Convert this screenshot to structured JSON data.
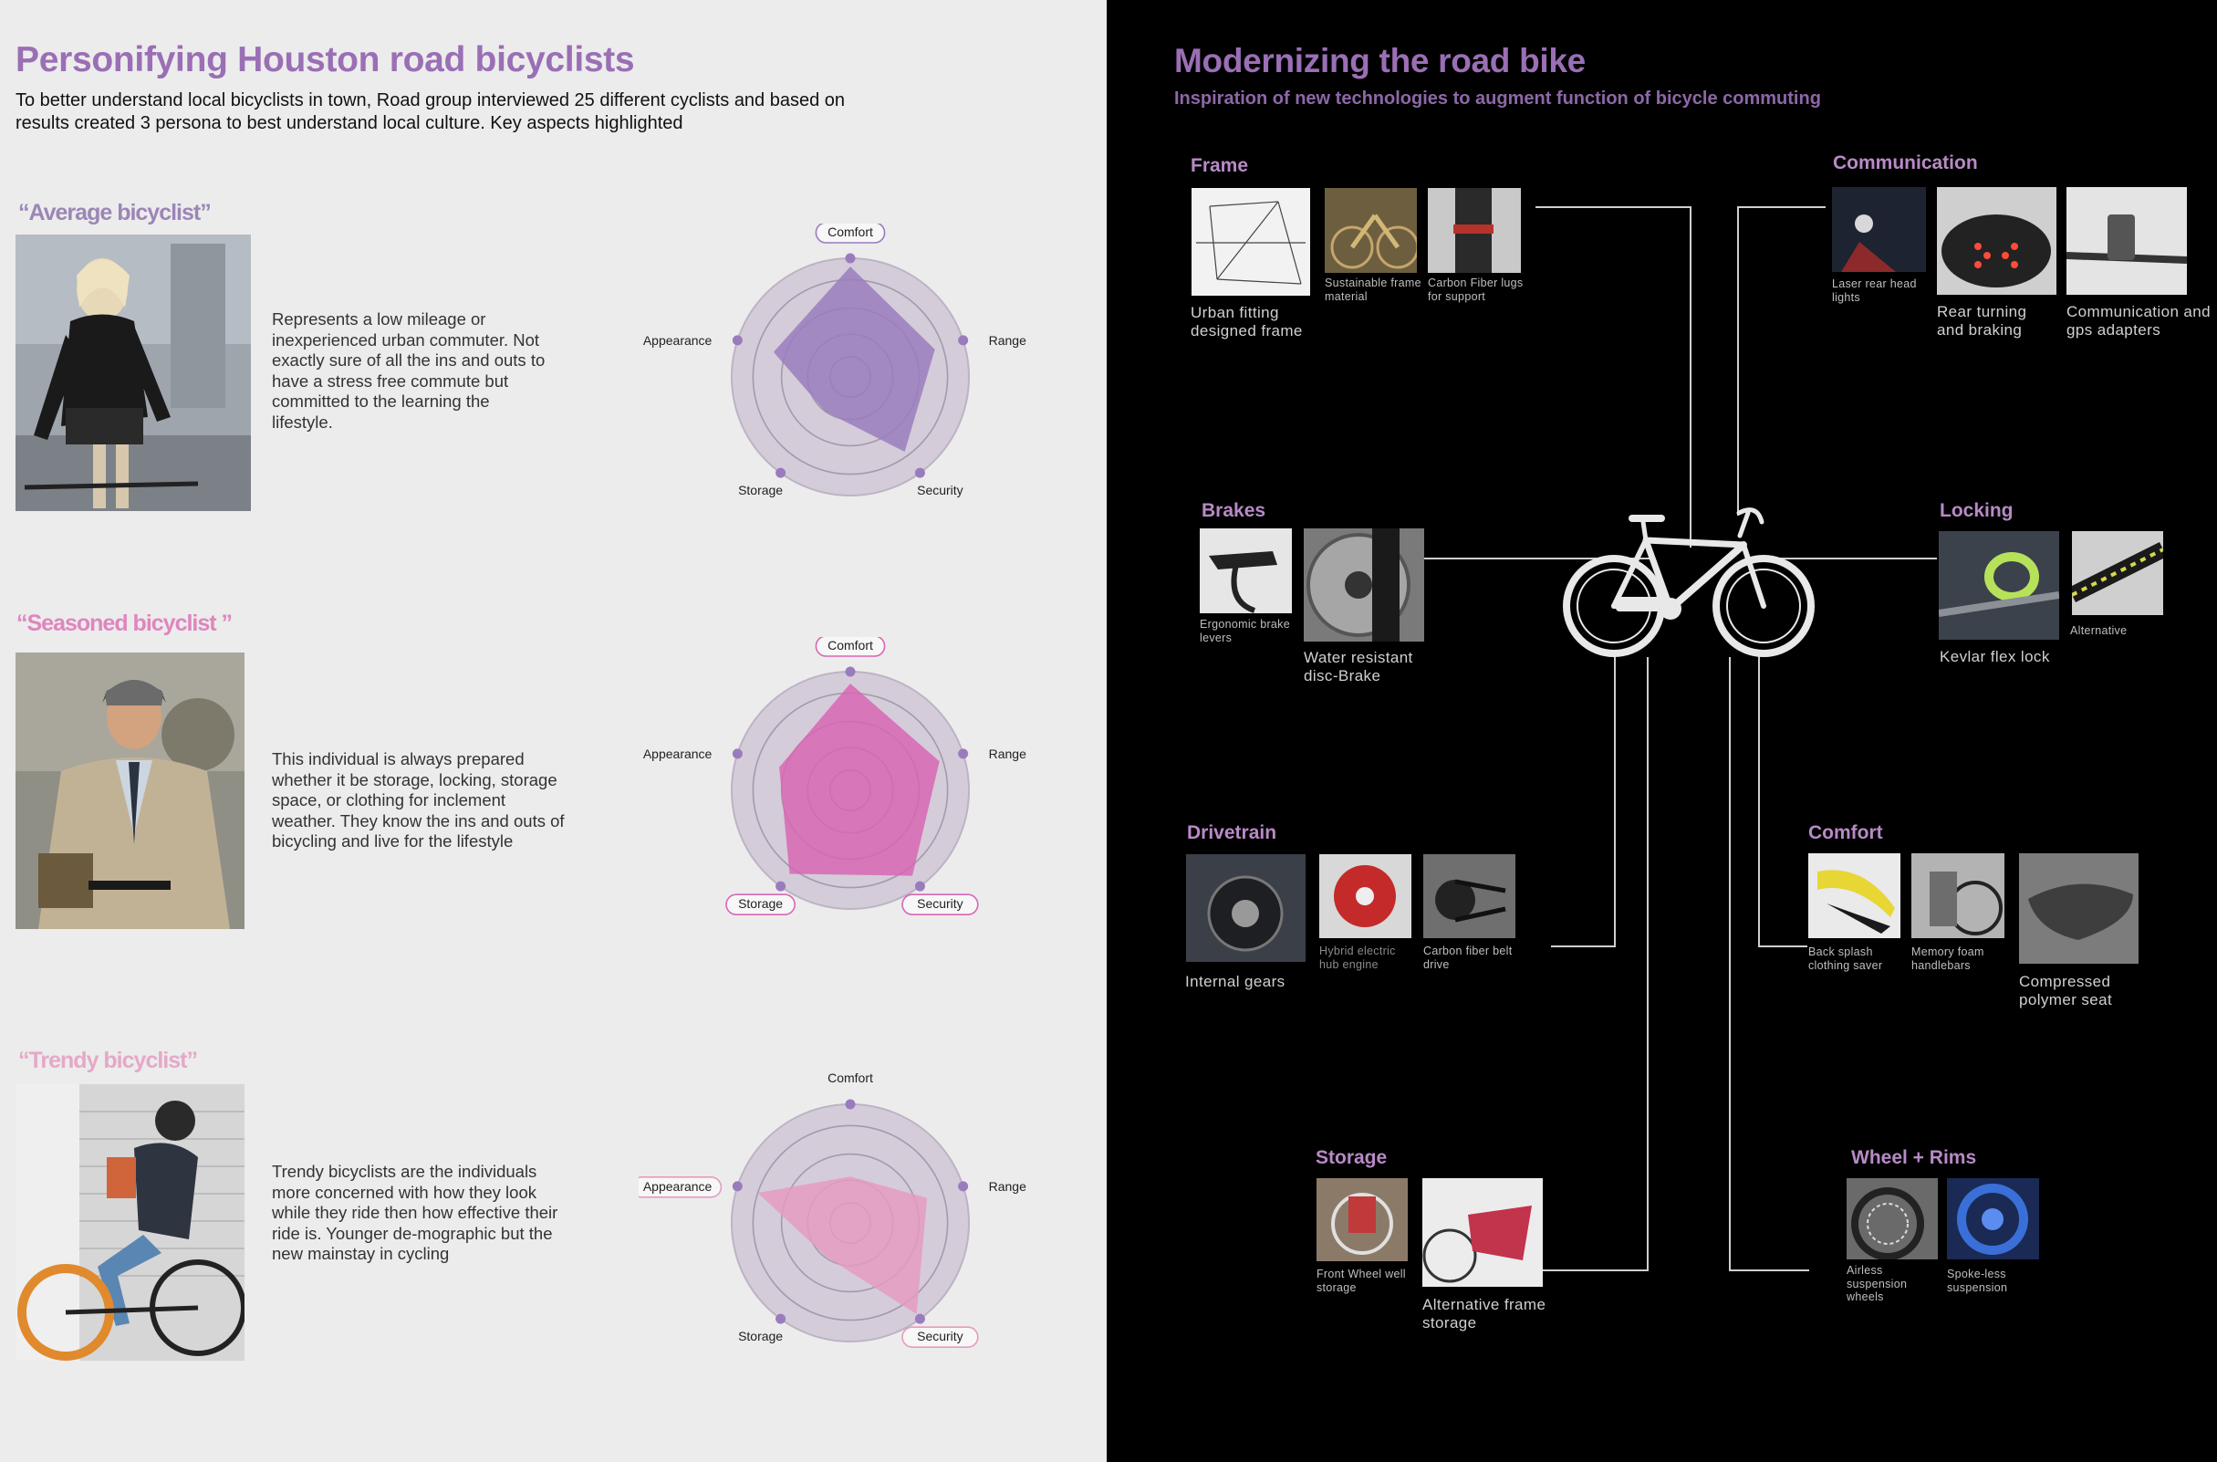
{
  "left": {
    "title": "Personifying Houston road bicyclists",
    "intro": "To better understand local bicyclists in town, Road group interviewed 25 different cyclists and based on results created 3 persona to best understand local culture. Key aspects highlighted",
    "personas": [
      {
        "name": "“Average bicyclist”",
        "description": "Represents a low mileage or inexperienced urban commuter. Not exactly sure of all the ins and outs to have a stress free commute but committed to the learning the lifestyle.",
        "color": "#9a7cbd",
        "highlighted": [
          "Comfort"
        ]
      },
      {
        "name": "“Seasoned bicyclist ”",
        "description": "This individual is always prepared whether it be storage, locking, storage space, or clothing for inclement weather. They know the ins and outs of bicycling and live for the lifestyle",
        "color": "#d866b4",
        "highlighted": [
          "Comfort",
          "Storage",
          "Security"
        ]
      },
      {
        "name": "“Trendy bicyclist”",
        "description": "Trendy bicyclists are the individuals more concerned with how they look while they ride then how effective their ride is. Younger de-mographic but the new mainstay in cycling",
        "color": "#e59bbf",
        "highlighted": [
          "Appearance",
          "Security"
        ]
      }
    ],
    "radar_labels": {
      "comfort": "Comfort",
      "range": "Range",
      "security": "Security",
      "storage": "Storage",
      "appearance": "Appearance"
    }
  },
  "chart_data": [
    {
      "type": "radar",
      "title": "“Average bicyclist”",
      "axes": [
        "Comfort",
        "Range",
        "Security",
        "Storage",
        "Appearance"
      ],
      "values": [
        0.93,
        0.75,
        0.78,
        0.36,
        0.68
      ],
      "max": 1
    },
    {
      "type": "radar",
      "title": "“Seasoned bicyclist ”",
      "axes": [
        "Comfort",
        "Range",
        "Security",
        "Storage",
        "Appearance"
      ],
      "values": [
        0.9,
        0.79,
        0.89,
        0.87,
        0.63
      ],
      "max": 1
    },
    {
      "type": "radar",
      "title": "“Trendy bicyclist”",
      "axes": [
        "Comfort",
        "Range",
        "Security",
        "Storage",
        "Appearance"
      ],
      "values": [
        0.39,
        0.68,
        0.95,
        0.35,
        0.82
      ],
      "max": 1
    }
  ],
  "right": {
    "title": "Modernizing the road bike",
    "subtitle": "Inspiration of new technologies to augment function of bicycle commuting",
    "groups": {
      "frame": {
        "title": "Frame",
        "items": [
          "Urban fitting designed frame",
          "Sustainable frame material",
          "Carbon Fiber lugs for support"
        ]
      },
      "communication": {
        "title": "Communication",
        "items": [
          "Laser rear head lights",
          "Rear turning and braking",
          "Communication and gps adapters"
        ]
      },
      "brakes": {
        "title": "Brakes",
        "items": [
          "Ergonomic brake levers",
          "Water resistant disc-Brake"
        ]
      },
      "locking": {
        "title": "Locking",
        "items": [
          "Kevlar flex lock",
          "Alternative"
        ]
      },
      "drivetrain": {
        "title": "Drivetrain",
        "items": [
          "Internal gears",
          "Hybrid electric hub engine",
          "Carbon fiber belt drive"
        ]
      },
      "comfort": {
        "title": "Comfort",
        "items": [
          "Back splash clothing saver",
          "Memory foam handlebars",
          "Compressed polymer seat"
        ]
      },
      "storage": {
        "title": "Storage",
        "items": [
          "Front Wheel well storage",
          "Alternative frame storage"
        ]
      },
      "wheels": {
        "title": "Wheel + Rims",
        "items": [
          "Airless suspension wheels",
          "Spoke-less suspension"
        ]
      }
    }
  }
}
